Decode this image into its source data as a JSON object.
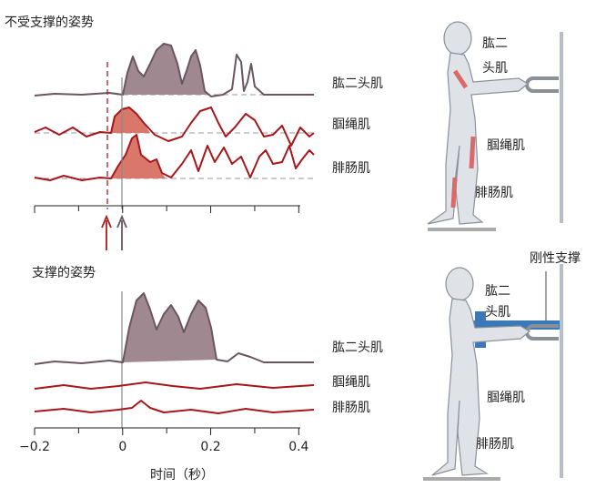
{
  "top_panel": {
    "title": "不受支撑的姿势",
    "traces": [
      "肱二头肌",
      "腘绳肌",
      "腓肠肌"
    ],
    "figure_labels": [
      "肱二",
      "头肌",
      "腘绳肌",
      "腓肠肌"
    ]
  },
  "bottom_panel": {
    "title": "支撑的姿势",
    "traces": [
      "肱二头肌",
      "腘绳肌",
      "腓肠肌"
    ],
    "figure_labels": [
      "肱二",
      "头肌",
      "腘绳肌",
      "腓肠肌"
    ],
    "support_label": "刚性支撑"
  },
  "axis": {
    "xlim": [
      -0.2,
      0.42
    ],
    "xticks": [
      {
        "value": -0.2,
        "label": "−0.2"
      },
      0,
      0.2,
      0.4
    ],
    "label": "时间（秒）"
  }
}
